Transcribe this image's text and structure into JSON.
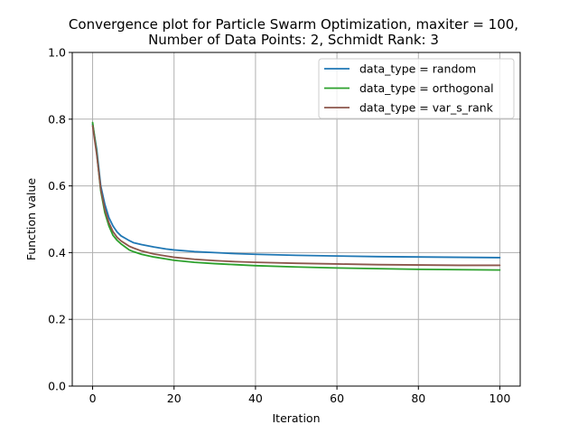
{
  "chart_data": {
    "type": "line",
    "title": "Convergence plot for Particle Swarm Optimization, maxiter = 100,",
    "subtitle": "Number of Data Points: 2, Schmidt Rank: 3",
    "xlabel": "Iteration",
    "ylabel": "Function value",
    "xlim": [
      -5,
      105
    ],
    "ylim": [
      0,
      1.0
    ],
    "xticks": [
      0,
      20,
      40,
      60,
      80,
      100
    ],
    "yticks": [
      0.0,
      0.2,
      0.4,
      0.6,
      0.8,
      1.0
    ],
    "xtick_labels": [
      "0",
      "20",
      "40",
      "60",
      "80",
      "100"
    ],
    "ytick_labels": [
      "0.0",
      "0.2",
      "0.4",
      "0.6",
      "0.8",
      "1.0"
    ],
    "grid": true,
    "legend_position": "top-right",
    "series": [
      {
        "name": "data_type = random",
        "color": "#1f77b4",
        "x": [
          0,
          1,
          2,
          3,
          4,
          5,
          6,
          7,
          8,
          9,
          10,
          12,
          15,
          18,
          20,
          25,
          30,
          35,
          40,
          50,
          60,
          70,
          80,
          90,
          100
        ],
        "y": [
          0.785,
          0.71,
          0.6,
          0.545,
          0.505,
          0.48,
          0.462,
          0.45,
          0.443,
          0.436,
          0.43,
          0.424,
          0.417,
          0.411,
          0.408,
          0.403,
          0.4,
          0.397,
          0.395,
          0.392,
          0.39,
          0.388,
          0.387,
          0.386,
          0.385
        ]
      },
      {
        "name": "data_type = orthogonal",
        "color": "#2ca02c",
        "x": [
          0,
          1,
          2,
          3,
          4,
          5,
          6,
          7,
          8,
          9,
          10,
          12,
          15,
          18,
          20,
          25,
          30,
          35,
          40,
          50,
          60,
          70,
          80,
          90,
          100
        ],
        "y": [
          0.79,
          0.7,
          0.585,
          0.52,
          0.48,
          0.452,
          0.437,
          0.426,
          0.417,
          0.408,
          0.403,
          0.395,
          0.387,
          0.381,
          0.377,
          0.371,
          0.367,
          0.364,
          0.361,
          0.357,
          0.354,
          0.352,
          0.35,
          0.349,
          0.348
        ]
      },
      {
        "name": "data_type = var_s_rank",
        "color": "#8c564b",
        "x": [
          0,
          1,
          2,
          3,
          4,
          5,
          6,
          7,
          8,
          9,
          10,
          12,
          15,
          18,
          20,
          25,
          30,
          35,
          40,
          50,
          60,
          70,
          80,
          90,
          100
        ],
        "y": [
          0.78,
          0.695,
          0.59,
          0.53,
          0.49,
          0.463,
          0.446,
          0.435,
          0.427,
          0.419,
          0.414,
          0.405,
          0.396,
          0.39,
          0.386,
          0.38,
          0.376,
          0.373,
          0.371,
          0.368,
          0.366,
          0.364,
          0.363,
          0.362,
          0.362
        ]
      }
    ]
  }
}
